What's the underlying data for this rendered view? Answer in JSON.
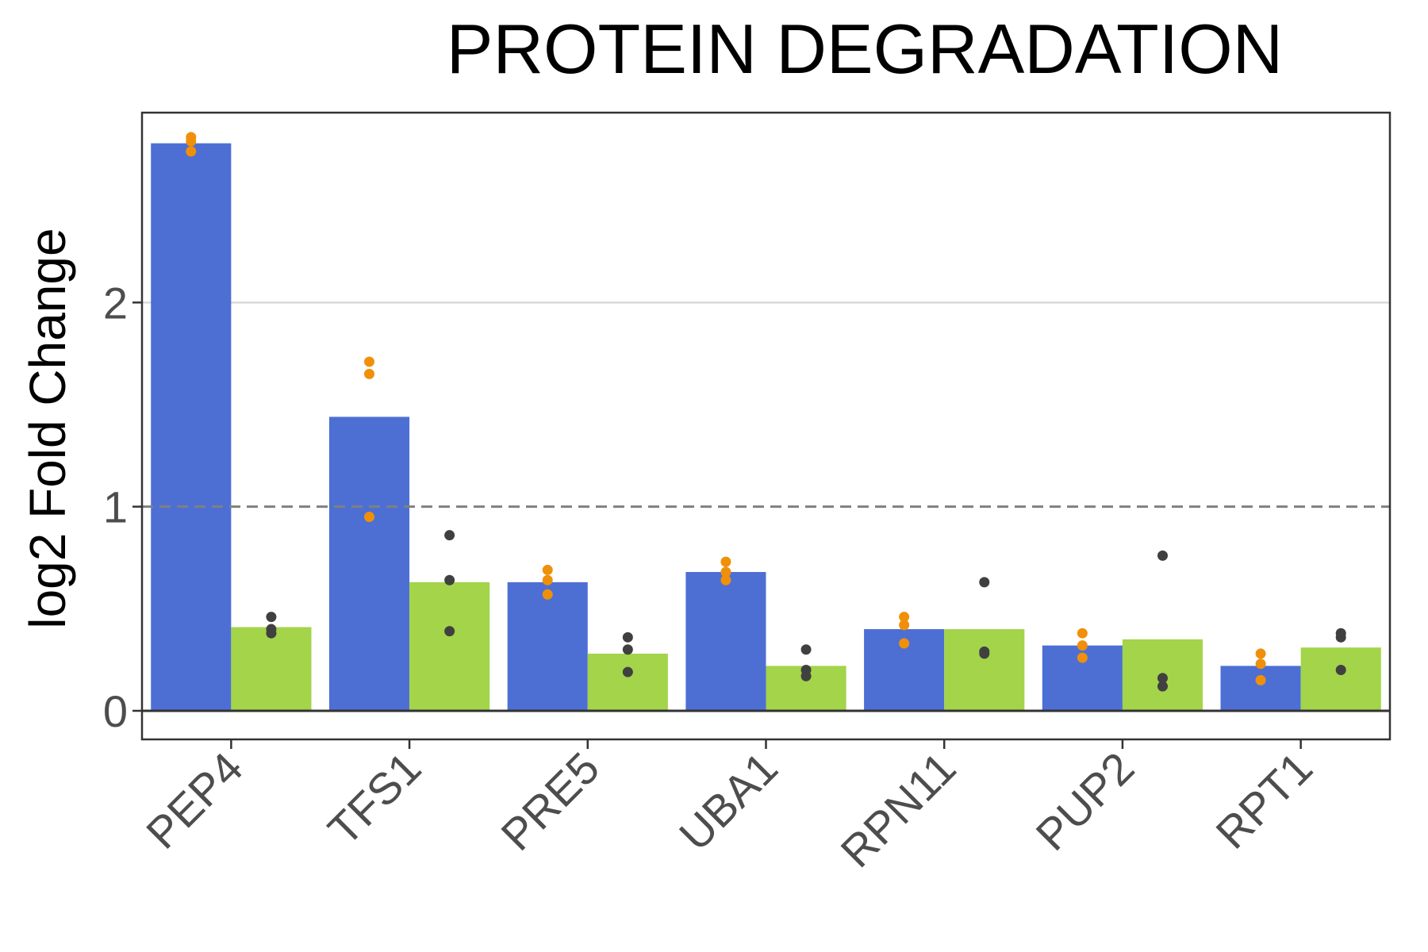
{
  "chart_data": {
    "type": "bar",
    "title": "PROTEIN DEGRADATION",
    "xlabel": "",
    "ylabel": "log2 Fold Change",
    "categories": [
      "PEP4",
      "TFS1",
      "PRE5",
      "UBA1",
      "RPN11",
      "PUP2",
      "RPT1"
    ],
    "ylim": [
      -0.14,
      2.93
    ],
    "yticks": [
      0,
      1,
      2
    ],
    "reference_line": 1,
    "grid": "horizontal major only",
    "legend": "none",
    "series": [
      {
        "color": "#4d6fd4",
        "point_color": "#f0900a",
        "values": [
          2.78,
          1.44,
          0.63,
          0.68,
          0.4,
          0.32,
          0.22
        ],
        "replicates": [
          [
            2.81,
            2.79,
            2.74
          ],
          [
            1.71,
            1.65,
            0.95
          ],
          [
            0.69,
            0.64,
            0.57
          ],
          [
            0.73,
            0.68,
            0.64
          ],
          [
            0.46,
            0.42,
            0.33
          ],
          [
            0.38,
            0.32,
            0.26
          ],
          [
            0.28,
            0.23,
            0.15
          ]
        ]
      },
      {
        "color": "#a3d44a",
        "point_color": "#404040",
        "values": [
          0.41,
          0.63,
          0.28,
          0.22,
          0.4,
          0.35,
          0.31
        ],
        "replicates": [
          [
            0.46,
            0.4,
            0.38
          ],
          [
            0.86,
            0.64,
            0.39
          ],
          [
            0.36,
            0.3,
            0.19
          ],
          [
            0.3,
            0.2,
            0.17
          ],
          [
            0.63,
            0.29,
            0.28
          ],
          [
            0.76,
            0.16,
            0.12
          ],
          [
            0.38,
            0.36,
            0.2
          ]
        ]
      }
    ]
  }
}
